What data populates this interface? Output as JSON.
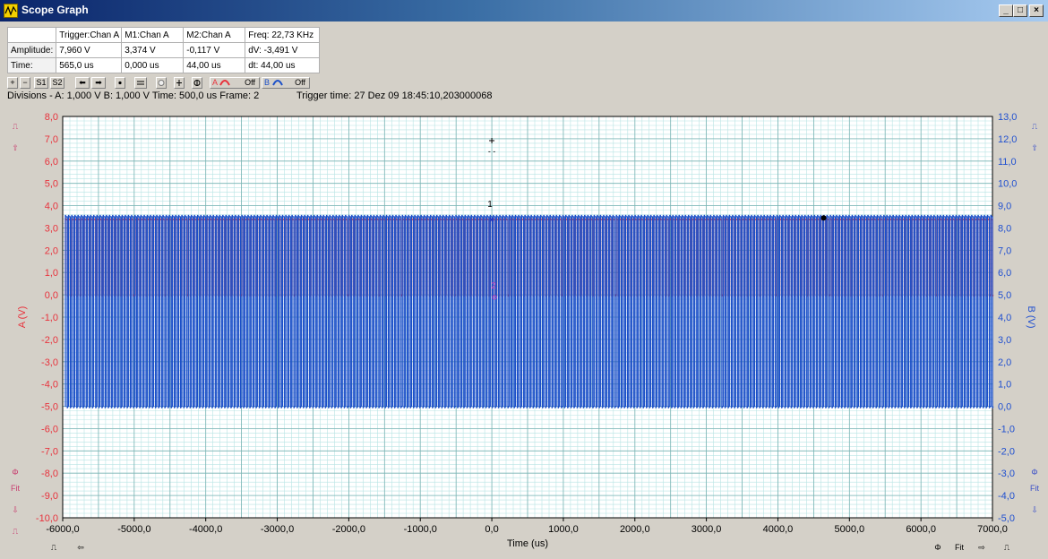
{
  "window": {
    "title": "Scope Graph",
    "min_glyph": "_",
    "max_glyph": "□",
    "close_glyph": "×"
  },
  "measurements": {
    "headers": [
      "",
      "Trigger:Chan A",
      "M1:Chan A",
      "M2:Chan A",
      "Freq: 22,73 KHz"
    ],
    "rows": [
      {
        "label": "Amplitude:",
        "trigger": "7,960 V",
        "m1": "3,374 V",
        "m2": "-0,117 V",
        "delta": "dV: -3,491 V"
      },
      {
        "label": "Time:",
        "trigger": "565,0 us",
        "m1": "0,000 us",
        "m2": "44,00 us",
        "delta": "dt:  44,00 us"
      }
    ]
  },
  "toolbar": {
    "zoom_in": "+",
    "zoom_out": "−",
    "s1": "S1",
    "s2": "S2",
    "left": "⬅",
    "right": "➡",
    "ch_a_label": "A",
    "ch_a_state": "Off",
    "ch_b_label": "B",
    "ch_b_state": "Off"
  },
  "status": {
    "divisions": "Divisions -  A: 1,000 V   B: 1,000 V   Time: 500,0 us  Frame: 2",
    "trigger_time": "Trigger time: 27 Dez 09 18:45:10,203000068"
  },
  "colors": {
    "channel_a": "#e8323c",
    "channel_b": "#1c50c8",
    "grid_minor": "#b8e4e4",
    "grid_major": "#7ab4b4",
    "axis_a": "#e8323c",
    "axis_b": "#2050d0"
  },
  "chart_data": {
    "type": "line",
    "xlabel": "Time (us)",
    "ylabel_left": "A (V)",
    "ylabel_right": "B (V)",
    "xlim": [
      -6000,
      7000
    ],
    "ylim_left": [
      -10,
      8
    ],
    "ylim_right": [
      -5,
      13
    ],
    "x_ticks": [
      "-6000,0",
      "-5000,0",
      "-4000,0",
      "-3000,0",
      "-2000,0",
      "-1000,0",
      "0,0",
      "1000,0",
      "2000,0",
      "3000,0",
      "4000,0",
      "5000,0",
      "6000,0",
      "7000,0"
    ],
    "y_left_ticks": [
      "8,0",
      "7,0",
      "6,0",
      "5,0",
      "4,0",
      "3,0",
      "2,0",
      "1,0",
      "0,0",
      "-1,0",
      "-2,0",
      "-3,0",
      "-4,0",
      "-5,0",
      "-6,0",
      "-7,0",
      "-8,0",
      "-9,0",
      "-10,0"
    ],
    "y_right_ticks": [
      "13,0",
      "12,0",
      "11,0",
      "10,0",
      "9,0",
      "8,0",
      "7,0",
      "6,0",
      "5,0",
      "4,0",
      "3,0",
      "2,0",
      "1,0",
      "0,0",
      "-1,0",
      "-2,0",
      "-3,0",
      "-4,0",
      "-5,0"
    ],
    "grid": true,
    "series": [
      {
        "channel": "A",
        "axis": "left",
        "high": 3.37,
        "low": 0.0,
        "period_us": 44.0
      },
      {
        "channel": "B",
        "axis": "right",
        "high": 8.5,
        "low": 0.0,
        "period_us": 44.0
      }
    ],
    "markers": {
      "m1_label": "1",
      "m2_label": "2"
    }
  },
  "side_buttons": {
    "left": [
      "⎍",
      "⇧",
      "Φ",
      "Fit",
      "⇩",
      "⎍"
    ],
    "right": [
      "⎍",
      "⇧",
      "Φ",
      "Fit",
      "⇩",
      "⎍"
    ],
    "bottom_left": [
      "⎍",
      "⇦"
    ],
    "bottom_right": [
      "Φ",
      "Fit",
      "⇨",
      "⎍"
    ]
  }
}
